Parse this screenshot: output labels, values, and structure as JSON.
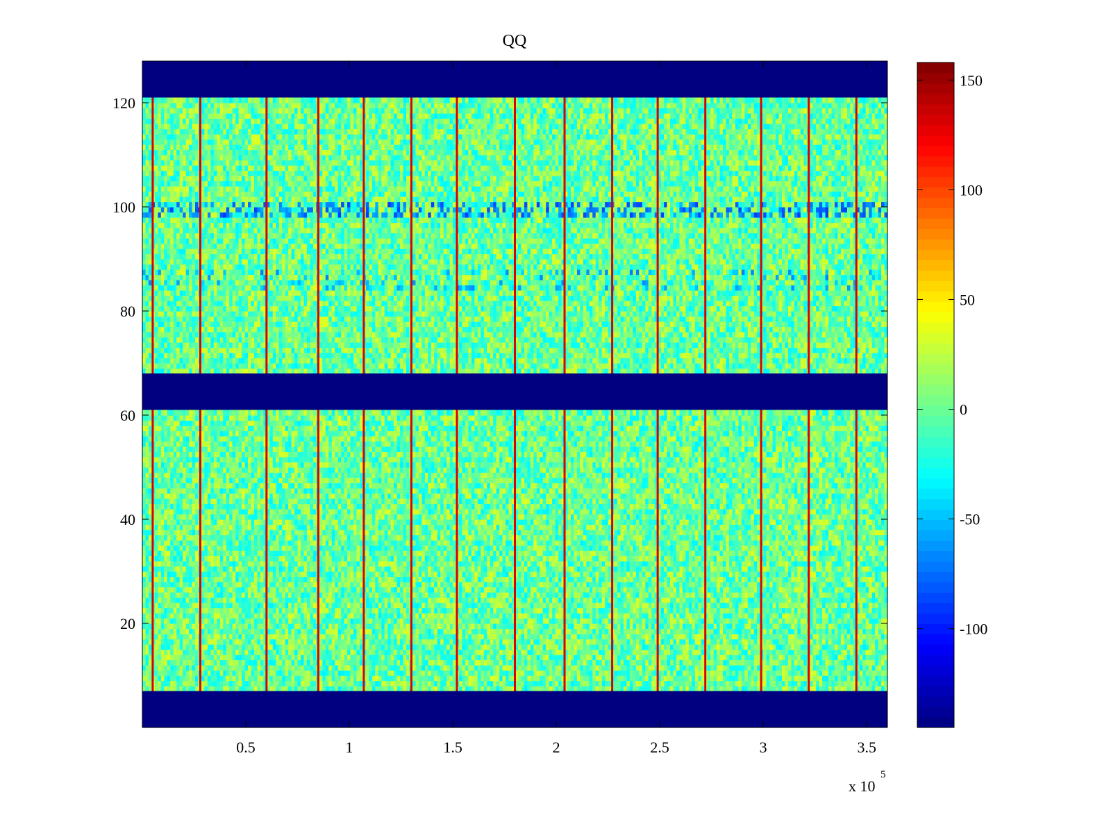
{
  "chart_data": {
    "type": "heatmap",
    "title": "QQ",
    "xlabel": "",
    "ylabel": "",
    "x_exponent_label": {
      "base": "x 10",
      "exponent": "5"
    },
    "xlim": [
      0,
      360000
    ],
    "ylim": [
      0,
      128
    ],
    "x_ticks": [
      {
        "value": 50000,
        "label": "0.5"
      },
      {
        "value": 100000,
        "label": "1"
      },
      {
        "value": 150000,
        "label": "1.5"
      },
      {
        "value": 200000,
        "label": "2"
      },
      {
        "value": 250000,
        "label": "2.5"
      },
      {
        "value": 300000,
        "label": "3"
      },
      {
        "value": 350000,
        "label": "3.5"
      }
    ],
    "y_ticks": [
      {
        "value": 20,
        "label": "20"
      },
      {
        "value": 40,
        "label": "40"
      },
      {
        "value": 60,
        "label": "60"
      },
      {
        "value": 80,
        "label": "80"
      },
      {
        "value": 100,
        "label": "100"
      },
      {
        "value": 120,
        "label": "120"
      }
    ],
    "colorbar": {
      "colormap": "jet",
      "range": [
        -145,
        158
      ],
      "ticks": [
        {
          "value": 150,
          "label": "150"
        },
        {
          "value": 100,
          "label": "100"
        },
        {
          "value": 50,
          "label": "50"
        },
        {
          "value": 0,
          "label": "0"
        },
        {
          "value": -50,
          "label": "-50"
        },
        {
          "value": -100,
          "label": "-100"
        }
      ]
    },
    "masked_row_bands": [
      {
        "y_from": 0,
        "y_to": 7,
        "value": -145
      },
      {
        "y_from": 61,
        "y_to": 68,
        "value": -145
      },
      {
        "y_from": 121,
        "y_to": 128,
        "value": -145
      }
    ],
    "background_value_range": [
      -35,
      35
    ],
    "high_value_column_x": [
      5000,
      28000,
      60000,
      85000,
      107000,
      130000,
      152000,
      180000,
      204000,
      227000,
      249000,
      272000,
      299000,
      322000,
      345000
    ],
    "high_value_column_value": 130,
    "low_value_row_band": {
      "y_from": 98,
      "y_to": 101,
      "value": -90
    },
    "low_value_row_band_2": {
      "y_from": 84,
      "y_to": 88,
      "value": -70
    }
  }
}
